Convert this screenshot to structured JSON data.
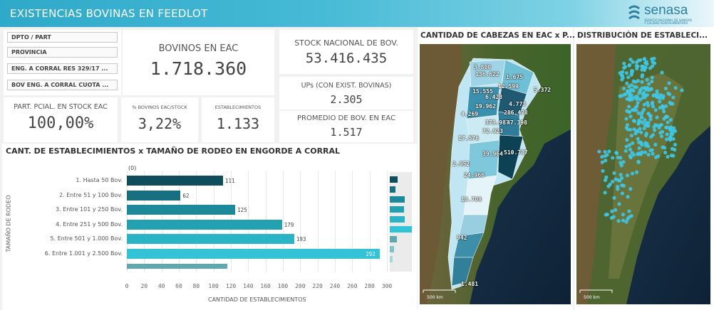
{
  "header": {
    "title": "EXISTENCIAS BOVINAS EN FEEDLOT"
  },
  "logo": {
    "name": "senasa",
    "subtitle_line1": "SERVICIO NACIONAL DE SANIDAD",
    "subtitle_line2": "Y CALIDAD AGROALIMENTARIA"
  },
  "slicers": [
    {
      "label": "DPTO / PART"
    },
    {
      "label": "PROVINCIA"
    },
    {
      "label": "ENG. A CORRAL RES 329/17 ..."
    },
    {
      "label": "BOV ENG. A CORRAL CUOTA ..."
    }
  ],
  "kpis": {
    "bovinos_eac": {
      "label": "BOVINOS EN EAC",
      "value": "1.718.360"
    },
    "stock_nacional": {
      "label": "STOCK NACIONAL DE BOV.",
      "value": "53.416.435"
    },
    "ups": {
      "label": "UPs (CON EXIST. BOVINAS)",
      "value": "2.305"
    },
    "promedio": {
      "label": "PROMEDIO DE BOV. EN EAC",
      "value": "1.517"
    },
    "part_pcial": {
      "label": "PART. PCIAL. EN STOCK EAC",
      "value": "100,00%"
    },
    "pct_bovinos": {
      "label": "% BOVINOS EAC/STOCK",
      "value": "3,22%"
    },
    "establecimientos": {
      "label": "ESTABLECIMIENTOS",
      "value": "1.133"
    }
  },
  "chart_data": {
    "type": "bar",
    "orientation": "horizontal",
    "title": "CANT. DE ESTABLECIMIENTOS x TAMAÑO DE RODEO EN ENGORDE A CORRAL",
    "xlabel": "CANTIDAD DE ESTABLECIMIENTOS",
    "ylabel": "TAMAÑO DE RODEO",
    "null_label": "(0)",
    "xlim": [
      0,
      300
    ],
    "xticks": [
      0,
      20,
      40,
      60,
      80,
      100,
      120,
      140,
      160,
      180,
      200,
      220,
      240,
      260,
      280,
      300
    ],
    "categories": [
      "1. Hasta 50 Bov.",
      "2. Entre 51 y 100 Bov.",
      "3. Entre 101 y 250 Bov.",
      "4. Entre 251 y 500 Bov.",
      "5. Entre 501 y 1.000 Bov.",
      "6. Entre 1.001 y 2.500 Bov.",
      ""
    ],
    "values": [
      111,
      62,
      125,
      179,
      193,
      292,
      116
    ],
    "value_labels": [
      "111",
      "62",
      "125",
      "179",
      "193",
      "292",
      ""
    ],
    "colors": [
      "#0f4c5c",
      "#176f80",
      "#1e8a99",
      "#23a1b0",
      "#2ab4c6",
      "#32c3d6",
      "#5fa8b0"
    ]
  },
  "map_cabezas": {
    "title": "CANTIDAD DE CABEZAS EN EAC x P...",
    "scale_label": "500 km",
    "labels": [
      "3.800",
      "136.622",
      "1.675",
      "12.599",
      "5.372",
      "15.555",
      "6.428",
      "4.773",
      "19.962",
      "4.269",
      "286.478",
      "373.987",
      "47.398",
      "72.923",
      "17.576",
      "39.964",
      "510.787",
      "2.052",
      "24.966",
      "13.708",
      "942",
      "1.481"
    ]
  },
  "map_distribucion": {
    "title": "DISTRIBUCIÓN DE ESTABLECI...",
    "scale_label": "500 km"
  }
}
